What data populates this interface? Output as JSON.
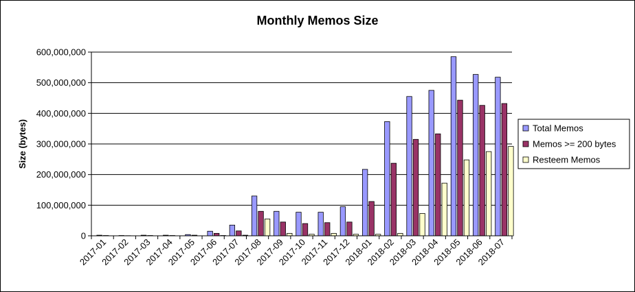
{
  "chart_data": {
    "type": "bar",
    "title": "Monthly Memos Size",
    "xlabel": "",
    "ylabel": "Size (bytes)",
    "ylim": [
      0,
      600000000
    ],
    "yticks": [
      "0",
      "100,000,000",
      "200,000,000",
      "300,000,000",
      "400,000,000",
      "500,000,000",
      "600,000,000"
    ],
    "grid": true,
    "legend_position": "right",
    "categories": [
      "2017-01",
      "2017-02",
      "2017-03",
      "2017-04",
      "2017-05",
      "2017-06",
      "2017-07",
      "2017-08",
      "2017-09",
      "2017-10",
      "2017-11",
      "2017-12",
      "2018-01",
      "2018-02",
      "2018-03",
      "2018-04",
      "2018-05",
      "2018-06",
      "2018-07"
    ],
    "series": [
      {
        "name": "Total Memos",
        "color": "#9999ff",
        "values": [
          2000000,
          1000000,
          2000000,
          2000000,
          4000000,
          15000000,
          35000000,
          130000000,
          80000000,
          77000000,
          77000000,
          95000000,
          217000000,
          373000000,
          455000000,
          475000000,
          585000000,
          527000000,
          518000000
        ]
      },
      {
        "name": "Memos >= 200 bytes",
        "color": "#993366",
        "values": [
          1000000,
          500000,
          1000000,
          1000000,
          2000000,
          8000000,
          16000000,
          80000000,
          45000000,
          40000000,
          43000000,
          45000000,
          112000000,
          237000000,
          315000000,
          333000000,
          443000000,
          426000000,
          432000000
        ]
      },
      {
        "name": "Resteem Memos",
        "color": "#ffffcc",
        "values": [
          0,
          0,
          0,
          0,
          0,
          1000000,
          2000000,
          55000000,
          8000000,
          5000000,
          8000000,
          5000000,
          5000000,
          8000000,
          73000000,
          172000000,
          248000000,
          275000000,
          292000000
        ]
      }
    ]
  }
}
